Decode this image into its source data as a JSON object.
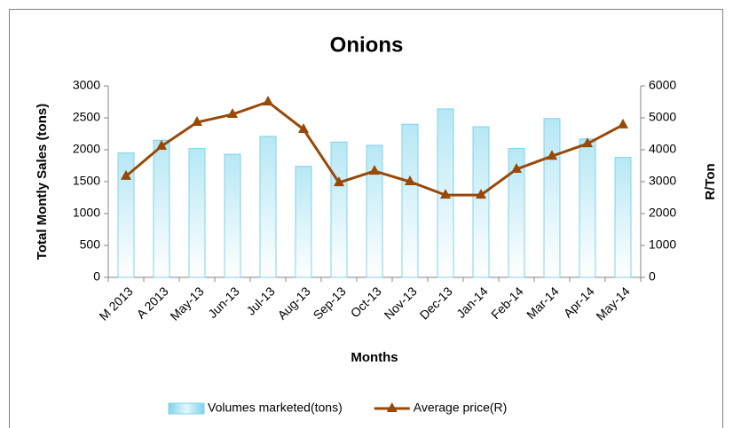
{
  "chart_data": {
    "type": "bar_line",
    "title": "Onions",
    "x_label": "Months",
    "y_label": "Total Montly Sales (tons)",
    "y2_label": "R/Ton",
    "categories": [
      "M 2013",
      "A 2013",
      "May-13",
      "Jun-13",
      "Jul-13",
      "Aug-13",
      "Sep-13",
      "Oct-13",
      "Nov-13",
      "Dec-13",
      "Jan-14",
      "Feb-14",
      "Mar-14",
      "Apr-14",
      "May-14"
    ],
    "series": [
      {
        "name": "Volumes marketed(tons)",
        "type": "bar",
        "color": "#7fd3ea",
        "values": [
          1950,
          2150,
          2020,
          1930,
          2210,
          1740,
          2120,
          2070,
          2400,
          2640,
          2360,
          2020,
          2490,
          2170,
          1880
        ]
      },
      {
        "name": "Average price(R)",
        "type": "line",
        "axis": "y2",
        "color": "#984807",
        "values": [
          3170,
          4110,
          4860,
          5110,
          5500,
          4640,
          2970,
          3330,
          3000,
          2580,
          2580,
          3390,
          3800,
          4190,
          4780
        ]
      }
    ],
    "ylim": [
      0,
      3000
    ],
    "yticks": [
      0,
      500,
      1000,
      1500,
      2000,
      2500,
      3000
    ],
    "y2lim": [
      0,
      6000
    ],
    "y2ticks": [
      0,
      1000,
      2000,
      3000,
      4000,
      5000,
      6000
    ],
    "legend": "bottom"
  }
}
